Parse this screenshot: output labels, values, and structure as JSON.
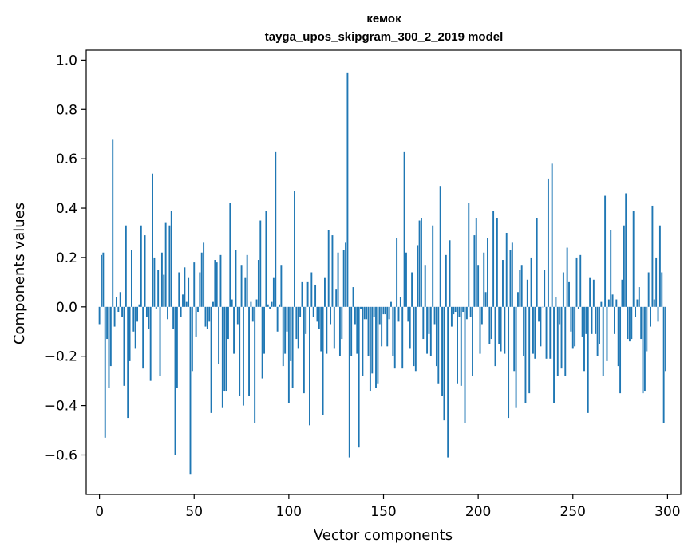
{
  "chart_data": {
    "type": "bar",
    "title": "кемок",
    "subtitle": "tayga_upos_skipgram_300_2_2019 model",
    "xlabel": "Vector components",
    "ylabel": "Components values",
    "xlim": [
      -7,
      307
    ],
    "ylim": [
      -0.76,
      1.04
    ],
    "xticks": [
      0,
      50,
      100,
      150,
      200,
      250,
      300
    ],
    "yticks": [
      -0.6,
      -0.4,
      -0.2,
      0.0,
      0.2,
      0.4,
      0.6,
      0.8,
      1.0
    ],
    "ytick_labels": [
      "−0.6",
      "−0.4",
      "−0.2",
      "0.0",
      "0.2",
      "0.4",
      "0.6",
      "0.8",
      "1.0"
    ],
    "grid": false,
    "legend": "none",
    "bar_color": "#1f77b4",
    "x_start": 0,
    "values": [
      -0.07,
      0.21,
      0.22,
      -0.53,
      -0.13,
      -0.33,
      -0.24,
      0.68,
      -0.08,
      0.04,
      -0.02,
      0.06,
      -0.04,
      -0.32,
      0.33,
      -0.45,
      -0.22,
      0.23,
      -0.1,
      -0.17,
      -0.06,
      0.01,
      0.33,
      -0.25,
      0.29,
      -0.04,
      -0.09,
      -0.3,
      0.54,
      0.2,
      -0.01,
      0.15,
      -0.28,
      0.22,
      0.13,
      0.34,
      -0.05,
      0.33,
      0.39,
      -0.09,
      -0.6,
      -0.33,
      0.14,
      -0.04,
      0.05,
      0.16,
      0.02,
      0.12,
      -0.68,
      -0.26,
      0.18,
      -0.12,
      -0.02,
      0.14,
      0.22,
      0.26,
      -0.08,
      -0.09,
      -0.06,
      -0.43,
      0.02,
      0.19,
      0.18,
      -0.23,
      0.21,
      -0.41,
      -0.34,
      -0.34,
      -0.13,
      0.42,
      0.03,
      -0.19,
      0.23,
      -0.07,
      -0.36,
      0.17,
      -0.4,
      0.12,
      0.21,
      -0.36,
      0.02,
      -0.06,
      -0.47,
      0.03,
      0.19,
      0.35,
      -0.29,
      -0.19,
      0.39,
      0.01,
      -0.01,
      0.02,
      0.12,
      0.63,
      -0.1,
      0.01,
      0.17,
      -0.24,
      -0.19,
      -0.1,
      -0.39,
      -0.22,
      -0.33,
      0.47,
      -0.13,
      -0.17,
      -0.04,
      0.1,
      -0.35,
      -0.11,
      0.1,
      -0.48,
      0.14,
      -0.04,
      0.09,
      -0.06,
      -0.09,
      -0.18,
      -0.44,
      0.12,
      -0.19,
      0.31,
      -0.07,
      0.29,
      -0.17,
      0.07,
      0.22,
      -0.2,
      -0.13,
      0.23,
      0.26,
      0.95,
      -0.61,
      -0.2,
      0.08,
      -0.07,
      -0.19,
      -0.57,
      -0.01,
      -0.28,
      -0.05,
      -0.05,
      -0.2,
      -0.34,
      -0.27,
      -0.04,
      -0.33,
      -0.31,
      -0.07,
      -0.16,
      -0.03,
      -0.03,
      -0.16,
      -0.05,
      0.02,
      -0.2,
      -0.25,
      0.28,
      -0.06,
      0.04,
      -0.25,
      0.63,
      0.22,
      -0.06,
      -0.17,
      0.14,
      -0.24,
      -0.26,
      0.25,
      0.35,
      0.36,
      -0.13,
      0.17,
      -0.19,
      -0.11,
      -0.2,
      0.33,
      -0.07,
      -0.24,
      -0.31,
      0.49,
      -0.36,
      -0.46,
      0.21,
      -0.61,
      0.27,
      -0.08,
      -0.03,
      -0.02,
      -0.31,
      -0.04,
      -0.32,
      -0.02,
      -0.47,
      -0.05,
      0.42,
      -0.04,
      -0.28,
      0.29,
      0.36,
      0.17,
      -0.19,
      -0.07,
      0.22,
      0.06,
      0.28,
      -0.15,
      -0.13,
      0.39,
      -0.24,
      0.36,
      -0.15,
      -0.18,
      0.19,
      -0.19,
      0.3,
      -0.45,
      0.23,
      0.26,
      -0.26,
      -0.41,
      0.06,
      0.15,
      0.17,
      -0.2,
      -0.39,
      0.11,
      -0.35,
      0.2,
      -0.19,
      -0.21,
      0.36,
      -0.06,
      -0.16,
      0.0,
      0.15,
      -0.21,
      0.52,
      -0.21,
      0.58,
      -0.39,
      0.04,
      -0.28,
      -0.07,
      -0.25,
      0.14,
      -0.28,
      0.24,
      0.1,
      -0.1,
      -0.17,
      -0.16,
      0.2,
      -0.01,
      0.21,
      -0.12,
      -0.26,
      -0.11,
      -0.43,
      0.12,
      -0.11,
      0.11,
      -0.11,
      -0.2,
      -0.15,
      0.02,
      -0.28,
      0.45,
      -0.22,
      0.03,
      0.31,
      0.05,
      -0.11,
      0.03,
      -0.24,
      -0.35,
      0.11,
      0.33,
      0.46,
      -0.13,
      -0.14,
      -0.13,
      0.39,
      -0.04,
      0.03,
      0.08,
      -0.13,
      -0.35,
      -0.34,
      -0.18,
      0.14,
      -0.08,
      0.41,
      0.03,
      0.2,
      -0.06,
      0.33,
      0.14,
      -0.47,
      -0.26
    ]
  }
}
